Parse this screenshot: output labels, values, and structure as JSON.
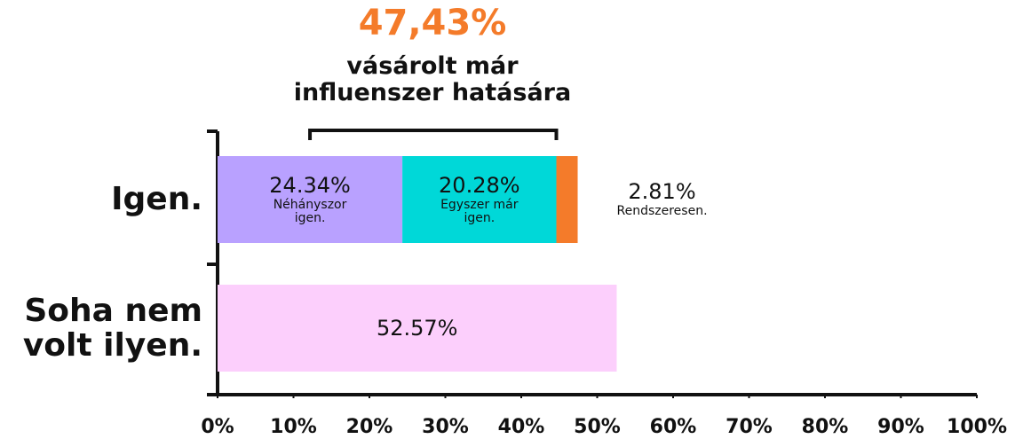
{
  "chart_data": {
    "type": "stacked_bar_horizontal",
    "title": "47,43%",
    "subtitle": "vásárolt már influenszer hatására",
    "categories": [
      "Igen.",
      "Soha nem volt ilyen."
    ],
    "series": [
      {
        "name": "Néhányszor igen.",
        "color": "#b9a1ff",
        "values": [
          24.34,
          null
        ],
        "value_labels": [
          "24.34%",
          null
        ]
      },
      {
        "name": "Egyszer már igen.",
        "color": "#00d8d8",
        "values": [
          20.28,
          null
        ],
        "value_labels": [
          "20.28%",
          null
        ]
      },
      {
        "name": "Rendszeresen.",
        "color": "#f47b2a",
        "values": [
          2.81,
          null
        ],
        "value_labels": [
          "2.81%",
          null
        ]
      },
      {
        "color": "#fccffc",
        "values": [
          null,
          52.57
        ],
        "value_labels": [
          null,
          "52.57%"
        ]
      }
    ],
    "xlim": [
      0,
      100
    ],
    "xticks": [
      {
        "value": 0,
        "label": "0%"
      },
      {
        "value": 10,
        "label": "10%"
      },
      {
        "value": 20,
        "label": "20%"
      },
      {
        "value": 30,
        "label": "30%"
      },
      {
        "value": 40,
        "label": "40%"
      },
      {
        "value": 50,
        "label": "50%"
      },
      {
        "value": 60,
        "label": "60%"
      },
      {
        "value": 70,
        "label": "70%"
      },
      {
        "value": 80,
        "label": "80%"
      },
      {
        "value": 90,
        "label": "90%"
      },
      {
        "value": 100,
        "label": "100%"
      }
    ],
    "title_color": "#f47b2a"
  }
}
